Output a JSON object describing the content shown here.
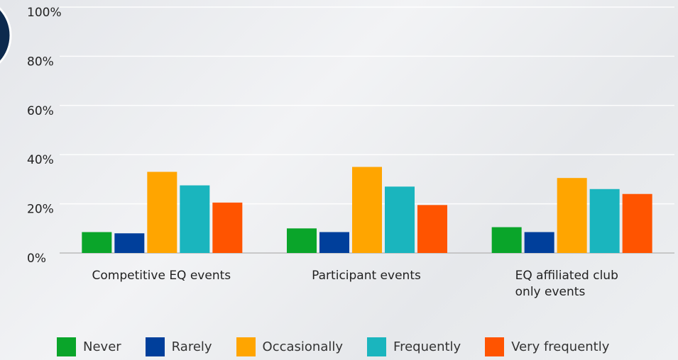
{
  "chart_data": {
    "type": "bar",
    "categories": [
      "Competitive EQ events",
      "Participant events",
      "EQ affiliated club only events"
    ],
    "series": [
      {
        "name": "Never",
        "color": "#0aa52a",
        "values": [
          8.5,
          10,
          10.5
        ]
      },
      {
        "name": "Rarely",
        "color": "#003f9b",
        "values": [
          8,
          8.5,
          8.5
        ]
      },
      {
        "name": "Occasionally",
        "color": "#ffa500",
        "values": [
          33,
          35,
          30.5
        ]
      },
      {
        "name": "Frequently",
        "color": "#1ab5be",
        "values": [
          27.5,
          27,
          26
        ]
      },
      {
        "name": "Very frequently",
        "color": "#ff5400",
        "values": [
          20.5,
          19.5,
          24
        ]
      }
    ],
    "ylim": [
      0,
      100
    ],
    "yticks": [
      {
        "value": 0,
        "label": "0%"
      },
      {
        "value": 20,
        "label": "20%"
      },
      {
        "value": 40,
        "label": "40%"
      },
      {
        "value": 60,
        "label": "60%"
      },
      {
        "value": 80,
        "label": "80%"
      },
      {
        "value": 100,
        "label": "100%"
      }
    ],
    "grid": true,
    "legend": "bottom"
  }
}
